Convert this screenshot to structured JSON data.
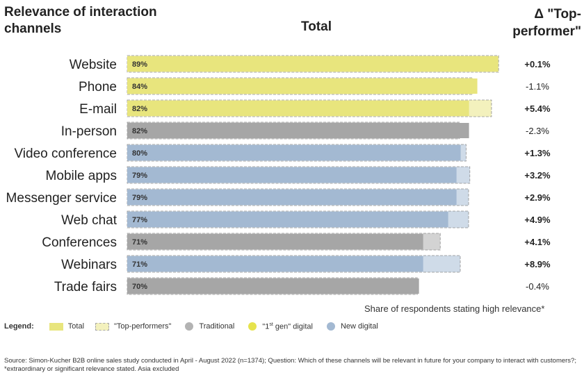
{
  "header": {
    "left_title": "Relevance of interaction channels",
    "center_title": "Total",
    "right_title": "Δ \"Top-performer\""
  },
  "chart_data": {
    "type": "bar",
    "orientation": "horizontal",
    "categories": [
      "Website",
      "Phone",
      "E-mail",
      "In-person",
      "Video conference",
      "Mobile apps",
      "Messenger service",
      "Web chat",
      "Conferences",
      "Webinars",
      "Trade fairs"
    ],
    "series": [
      {
        "name": "Total",
        "values": [
          89,
          84,
          82,
          82,
          80,
          79,
          79,
          77,
          71,
          71,
          70
        ]
      },
      {
        "name": "\"Top-performers\"",
        "values": [
          89.1,
          82.9,
          87.4,
          79.7,
          81.3,
          82.2,
          81.9,
          81.9,
          75.1,
          79.9,
          69.6
        ]
      }
    ],
    "value_labels": [
      "89%",
      "84%",
      "82%",
      "82%",
      "80%",
      "79%",
      "79%",
      "77%",
      "71%",
      "71%",
      "70%"
    ],
    "groups": [
      "1st gen digital",
      "1st gen digital",
      "1st gen digital",
      "Traditional",
      "New digital",
      "New digital",
      "New digital",
      "New digital",
      "Traditional",
      "New digital",
      "Traditional"
    ],
    "deltas": [
      "+0.1%",
      "-1.1%",
      "+5.4%",
      "-2.3%",
      "+1.3%",
      "+3.2%",
      "+2.9%",
      "+4.9%",
      "+4.1%",
      "+8.9%",
      "-0.4%"
    ],
    "delta_bold": [
      true,
      false,
      true,
      false,
      true,
      true,
      true,
      true,
      true,
      true,
      false
    ],
    "xlim": [
      0,
      91
    ],
    "xlabel": "Share of respondents stating high relevance*",
    "grid": false,
    "legend_position": "bottom-left"
  },
  "colors": {
    "yellow_dark": "#e8e57d",
    "yellow_light": "#f3f1bd",
    "blue_dark": "#a3b9d2",
    "blue_light": "#cfdbe8",
    "gray_dark": "#a6a6a6",
    "gray_light": "#d3d3d3",
    "dot_traditional": "#b3b3b3",
    "dot_first_gen": "#e6e34d",
    "dot_new_digital": "#a3b9d2"
  },
  "legend": {
    "title": "Legend:",
    "total": "Total",
    "top_performers": "\"Top-performers\"",
    "traditional": "Traditional",
    "first_gen_prefix": "\"1",
    "first_gen_sup": "st",
    "first_gen_suffix": " gen\" digital",
    "new_digital": "New digital"
  },
  "source": "Source: Simon-Kucher B2B online sales study conducted in April - August 2022 (n=1374); Question: Which of these channels will be relevant in future for your company to interact with customers?; *extraordinary or significant relevance stated. Asia excluded"
}
